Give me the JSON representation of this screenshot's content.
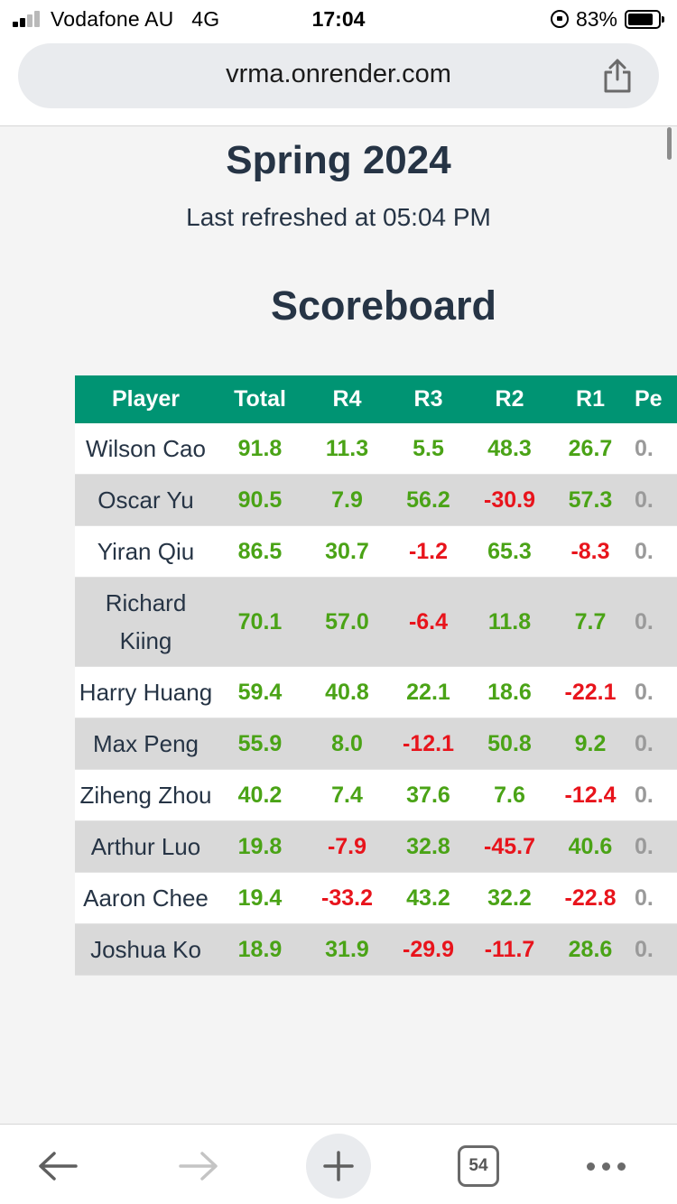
{
  "status_bar": {
    "carrier": "Vodafone AU",
    "network": "4G",
    "time": "17:04",
    "battery": "83%",
    "battery_level": 0.83
  },
  "browser": {
    "url": "vrma.onrender.com",
    "tab_count": "54"
  },
  "page": {
    "season_title": "Spring 2024",
    "refresh_text": "Last refreshed at 05:04 PM",
    "scoreboard_title": "Scoreboard"
  },
  "table": {
    "headers": [
      "Player",
      "Total",
      "R4",
      "R3",
      "R2",
      "R1",
      "Pe"
    ],
    "rows": [
      {
        "player": "Wilson Cao",
        "total": "91.8",
        "r4": "11.3",
        "r3": "5.5",
        "r2": "48.3",
        "r1": "26.7",
        "pen": "0."
      },
      {
        "player": "Oscar Yu",
        "total": "90.5",
        "r4": "7.9",
        "r3": "56.2",
        "r2": "-30.9",
        "r1": "57.3",
        "pen": "0."
      },
      {
        "player": "Yiran Qiu",
        "total": "86.5",
        "r4": "30.7",
        "r3": "-1.2",
        "r2": "65.3",
        "r1": "-8.3",
        "pen": "0."
      },
      {
        "player": "Richard Kiing",
        "total": "70.1",
        "r4": "57.0",
        "r3": "-6.4",
        "r2": "11.8",
        "r1": "7.7",
        "pen": "0."
      },
      {
        "player": "Harry Huang",
        "total": "59.4",
        "r4": "40.8",
        "r3": "22.1",
        "r2": "18.6",
        "r1": "-22.1",
        "pen": "0."
      },
      {
        "player": "Max Peng",
        "total": "55.9",
        "r4": "8.0",
        "r3": "-12.1",
        "r2": "50.8",
        "r1": "9.2",
        "pen": "0."
      },
      {
        "player": "Ziheng Zhou",
        "total": "40.2",
        "r4": "7.4",
        "r3": "37.6",
        "r2": "7.6",
        "r1": "-12.4",
        "pen": "0."
      },
      {
        "player": "Arthur Luo",
        "total": "19.8",
        "r4": "-7.9",
        "r3": "32.8",
        "r2": "-45.7",
        "r1": "40.6",
        "pen": "0."
      },
      {
        "player": "Aaron Chee",
        "total": "19.4",
        "r4": "-33.2",
        "r3": "43.2",
        "r2": "32.2",
        "r1": "-22.8",
        "pen": "0."
      },
      {
        "player": "Joshua Ko",
        "total": "18.9",
        "r4": "31.9",
        "r3": "-29.9",
        "r2": "-11.7",
        "r1": "28.6",
        "pen": "0."
      }
    ]
  },
  "colors": {
    "header_bg": "#009473",
    "positive": "#4aa316",
    "negative": "#e8141c",
    "title_text": "#263445"
  },
  "icons": {
    "share": "share-icon",
    "back": "back-arrow-icon",
    "forward": "forward-arrow-icon",
    "new_tab": "plus-icon",
    "more": "more-dots-icon"
  }
}
